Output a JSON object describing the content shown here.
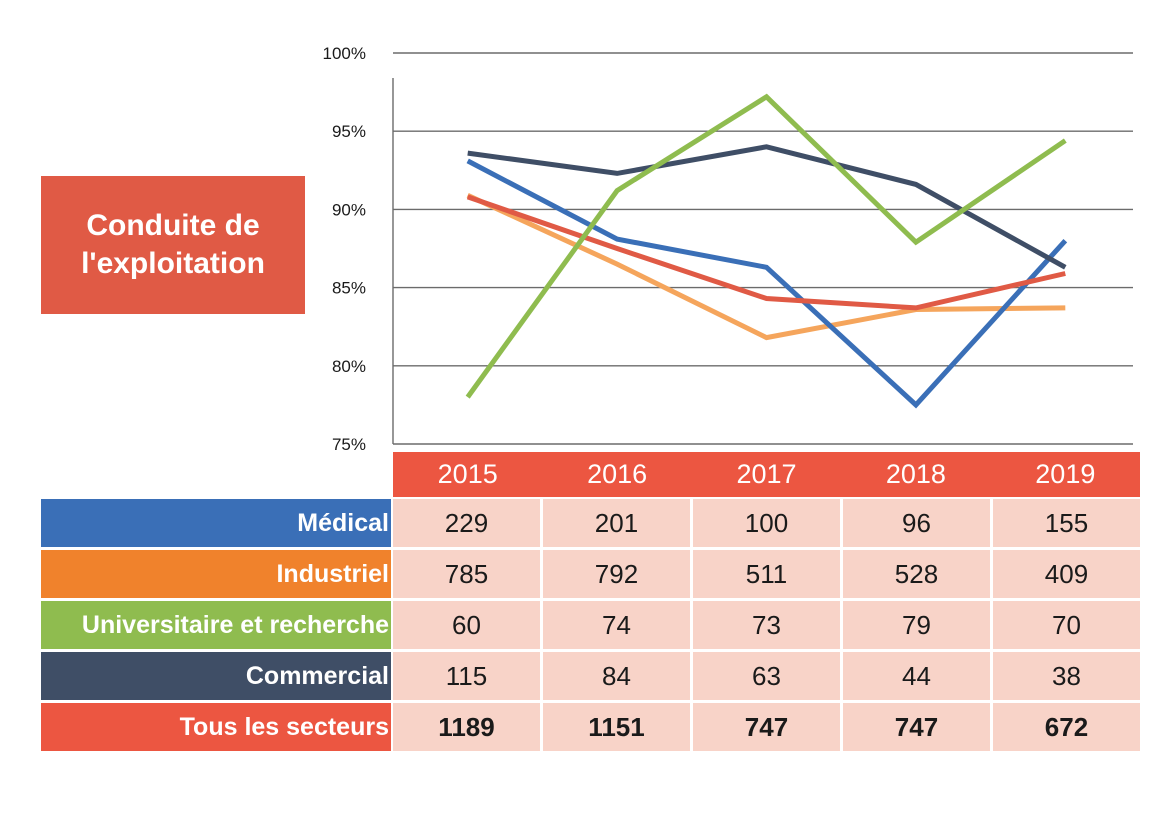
{
  "title_lines": [
    "Conduite de",
    "l'exploitation"
  ],
  "chart_data": {
    "type": "line",
    "x": [
      "2015",
      "2016",
      "2017",
      "2018",
      "2019"
    ],
    "y_ticks": [
      "100%",
      "95%",
      "90%",
      "85%",
      "80%",
      "75%"
    ],
    "ylim": [
      75,
      100
    ],
    "grid": true,
    "series": [
      {
        "name": "Médical",
        "color": "#3a6fb7",
        "values": [
          93.1,
          88.1,
          86.3,
          77.5,
          88.0
        ]
      },
      {
        "name": "Industriel",
        "color": "#f5a55c",
        "values": [
          90.9,
          86.5,
          81.8,
          83.6,
          83.7
        ]
      },
      {
        "name": "Universitaire et recherche",
        "color": "#8fbc4f",
        "values": [
          78.0,
          91.2,
          97.2,
          87.9,
          94.4
        ]
      },
      {
        "name": "Commercial",
        "color": "#3f4e66",
        "values": [
          93.6,
          92.3,
          94.0,
          91.6,
          86.3
        ]
      },
      {
        "name": "Tous les secteurs",
        "color": "#e05a45",
        "values": [
          90.8,
          87.5,
          84.3,
          83.7,
          85.9
        ]
      }
    ]
  },
  "table": {
    "years": [
      "2015",
      "2016",
      "2017",
      "2018",
      "2019"
    ],
    "rows": [
      {
        "label": "Médical",
        "color": "#3a6fb7",
        "values": [
          "229",
          "201",
          "100",
          "96",
          "155"
        ]
      },
      {
        "label": "Industriel",
        "color": "#f0822c",
        "values": [
          "785",
          "792",
          "511",
          "528",
          "409"
        ]
      },
      {
        "label": "Universitaire et recherche",
        "color": "#8fbc4f",
        "values": [
          "60",
          "74",
          "73",
          "79",
          "70"
        ]
      },
      {
        "label": "Commercial",
        "color": "#3f4e66",
        "values": [
          "115",
          "84",
          "63",
          "44",
          "38"
        ]
      },
      {
        "label": "Tous les secteurs",
        "color": "#ec5641",
        "values": [
          "1189",
          "1151",
          "747",
          "747",
          "672"
        ]
      }
    ]
  }
}
